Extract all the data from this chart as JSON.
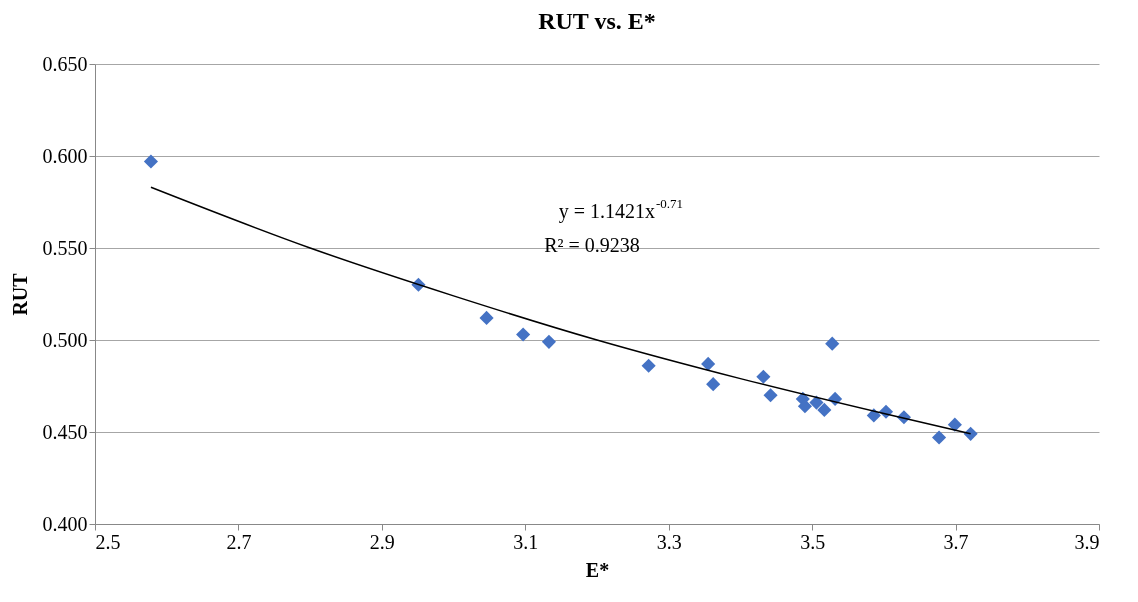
{
  "chart_data": {
    "type": "scatter",
    "title": "RUT vs. E*",
    "xlabel": "E*",
    "ylabel": "RUT",
    "xlim": [
      2.5,
      3.9
    ],
    "xticks": [
      2.5,
      2.7,
      2.9,
      3.1,
      3.3,
      3.5,
      3.7,
      3.9
    ],
    "ylim": [
      0.4,
      0.65
    ],
    "yticks": [
      {
        "value": 0.4,
        "label": "0.400"
      },
      {
        "value": 0.45,
        "label": "0.450"
      },
      {
        "value": 0.5,
        "label": "0.500"
      },
      {
        "value": 0.55,
        "label": "0.550"
      },
      {
        "value": 0.6,
        "label": "0.600"
      },
      {
        "value": 0.65,
        "label": "0.650"
      }
    ],
    "grid": "y",
    "series": [
      {
        "color": "#4472c4",
        "marker": "diamond",
        "x": [
          2.578,
          2.951,
          3.046,
          3.097,
          3.133,
          3.272,
          3.355,
          3.362,
          3.432,
          3.442,
          3.528,
          3.487,
          3.49,
          3.506,
          3.517,
          3.532,
          3.586,
          3.603,
          3.628,
          3.677,
          3.699,
          3.721
        ],
        "values": [
          0.597,
          0.53,
          0.512,
          0.503,
          0.499,
          0.486,
          0.487,
          0.476,
          0.48,
          0.47,
          0.498,
          0.468,
          0.464,
          0.466,
          0.462,
          0.468,
          0.459,
          0.461,
          0.458,
          0.447,
          0.454,
          0.449
        ]
      },
      {
        "type": "line",
        "color": "#000000",
        "marker": "none",
        "line_style": "solid",
        "x": [
          2.578,
          2.8,
          3.0,
          3.2,
          3.4,
          3.6,
          3.721
        ],
        "values": [
          0.583,
          0.55,
          0.524,
          0.5,
          0.479,
          0.46,
          0.449
        ]
      }
    ],
    "annotations": [
      "y = 1.1421x$^{-0.71}$",
      "R² = 0.9238"
    ]
  }
}
